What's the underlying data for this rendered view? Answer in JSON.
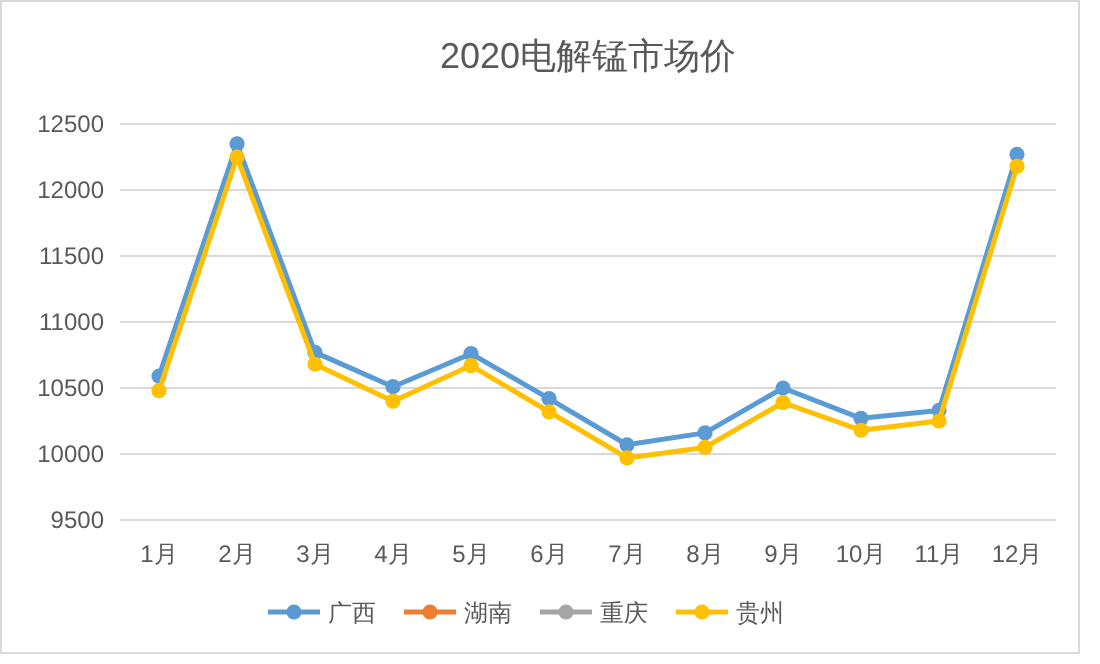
{
  "chart_data": {
    "type": "line",
    "title": "2020电解锰市场价",
    "categories": [
      "1月",
      "2月",
      "3月",
      "4月",
      "5月",
      "6月",
      "7月",
      "8月",
      "9月",
      "10月",
      "11月",
      "12月"
    ],
    "series": [
      {
        "name": "广西",
        "color": "#5b9bd5",
        "values": [
          10590,
          12350,
          10770,
          10510,
          10760,
          10420,
          10070,
          10160,
          10500,
          10270,
          10330,
          12270
        ]
      },
      {
        "name": "湖南",
        "color": "#ed7d31",
        "values": [
          null,
          null,
          null,
          null,
          null,
          null,
          null,
          null,
          null,
          null,
          null,
          null
        ]
      },
      {
        "name": "重庆",
        "color": "#a5a5a5",
        "values": [
          null,
          null,
          null,
          null,
          null,
          null,
          null,
          null,
          null,
          null,
          null,
          null
        ]
      },
      {
        "name": "贵州",
        "color": "#ffc000",
        "values": [
          10480,
          12250,
          10680,
          10400,
          10670,
          10320,
          9970,
          10050,
          10390,
          10180,
          10250,
          12180
        ]
      }
    ],
    "ylim": [
      9500,
      12500
    ],
    "yticks": [
      9500,
      10000,
      10500,
      11000,
      11500,
      12000,
      12500
    ],
    "grid": "y",
    "legend": "bottom",
    "marker": "circle",
    "line_style": "solid"
  }
}
